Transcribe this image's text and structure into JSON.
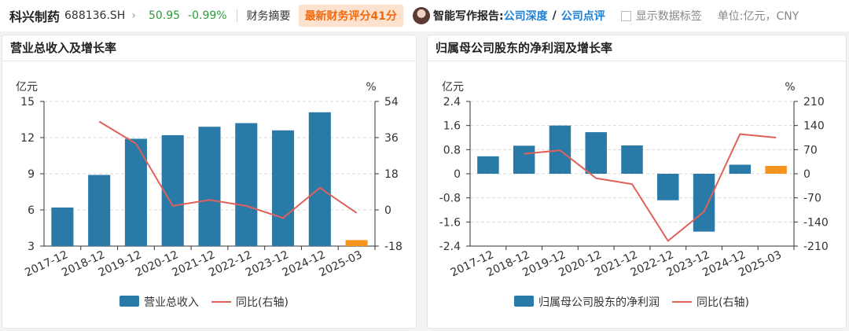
{
  "header": {
    "stock_name": "科兴制药",
    "stock_code": "688136.SH",
    "chevron": "›",
    "price": "50.95",
    "change": "-0.99%",
    "financial_summary": "财务摘要",
    "score_badge": "最新财务评分41分",
    "report_label": "智能写作报告:",
    "report_link_deep": "公司深度",
    "report_sep": "/",
    "report_link_review": "公司点评",
    "show_labels": "显示数据标签",
    "unit": "单位:亿元，CNY"
  },
  "colors": {
    "bar": "#2a7aa8",
    "bar_latest": "#f7941d",
    "line": "#e0605a",
    "grid": "#d9d9d9"
  },
  "chart_data": [
    {
      "type": "bar",
      "title": "营业总收入及增长率",
      "left_unit": "亿元",
      "right_unit": "%",
      "categories": [
        "2017-12",
        "2018-12",
        "2019-12",
        "2020-12",
        "2021-12",
        "2022-12",
        "2023-12",
        "2024-12",
        "2025-03"
      ],
      "bar_series": {
        "name": "营业总收入",
        "values": [
          6.2,
          8.9,
          11.9,
          12.2,
          12.9,
          13.2,
          12.6,
          14.1,
          3.5
        ]
      },
      "line_series": {
        "name": "同比(右轴)",
        "values": [
          null,
          44,
          33,
          2,
          5,
          2,
          -4,
          11,
          -1.5
        ]
      },
      "ylim_left": [
        3,
        15
      ],
      "yticks_left": [
        "15",
        "12",
        "9",
        "6",
        "3"
      ],
      "ylim_right": [
        -18,
        54
      ],
      "yticks_right": [
        "54",
        "36",
        "18",
        "0",
        "-18"
      ],
      "grid": true,
      "legend_position": "bottom"
    },
    {
      "type": "bar",
      "title": "归属母公司股东的净利润及增长率",
      "left_unit": "亿元",
      "right_unit": "%",
      "categories": [
        "2017-12",
        "2018-12",
        "2019-12",
        "2020-12",
        "2021-12",
        "2022-12",
        "2023-12",
        "2024-12",
        "2025-03"
      ],
      "bar_series": {
        "name": "归属母公司股东的净利润",
        "values": [
          0.58,
          0.93,
          1.6,
          1.38,
          0.94,
          -0.88,
          -1.92,
          0.3,
          0.26
        ]
      },
      "line_series": {
        "name": "同比(右轴)",
        "values": [
          null,
          58,
          68,
          -13,
          -30,
          -195,
          -110,
          115,
          105
        ]
      },
      "ylim_left": [
        -2.4,
        2.4
      ],
      "yticks_left": [
        "2.4",
        "1.6",
        "0.8",
        "0",
        "-0.8",
        "-1.6",
        "-2.4"
      ],
      "ylim_right": [
        -210,
        210
      ],
      "yticks_right": [
        "210",
        "140",
        "70",
        "0",
        "-70",
        "-140",
        "-210"
      ],
      "grid": true,
      "legend_position": "bottom"
    }
  ]
}
